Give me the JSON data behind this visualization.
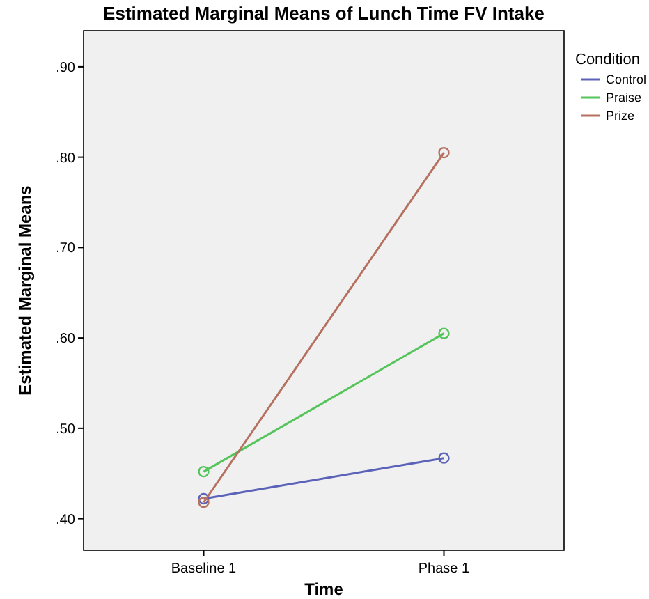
{
  "chart_data": {
    "type": "line",
    "title": "Estimated Marginal Means of Lunch Time FV Intake",
    "xlabel": "Time",
    "ylabel": "Estimated Marginal Means",
    "legend_title": "Condition",
    "legend": "right",
    "marker": "circle",
    "grid": false,
    "categories": [
      "Baseline 1",
      "Phase 1"
    ],
    "ylim": [
      0.365,
      0.94
    ],
    "yticks": [
      {
        "value": 0.4,
        "label": ".40"
      },
      {
        "value": 0.5,
        "label": ".50"
      },
      {
        "value": 0.6,
        "label": ".60"
      },
      {
        "value": 0.7,
        "label": ".70"
      },
      {
        "value": 0.8,
        "label": ".80"
      },
      {
        "value": 0.9,
        "label": ".90"
      }
    ],
    "series": [
      {
        "name": "Control",
        "color": "#5b63b8",
        "values": [
          0.422,
          0.467
        ]
      },
      {
        "name": "Praise",
        "color": "#55c45a",
        "values": [
          0.452,
          0.605
        ]
      },
      {
        "name": "Prize",
        "color": "#b5705f",
        "values": [
          0.418,
          0.805
        ]
      }
    ]
  }
}
